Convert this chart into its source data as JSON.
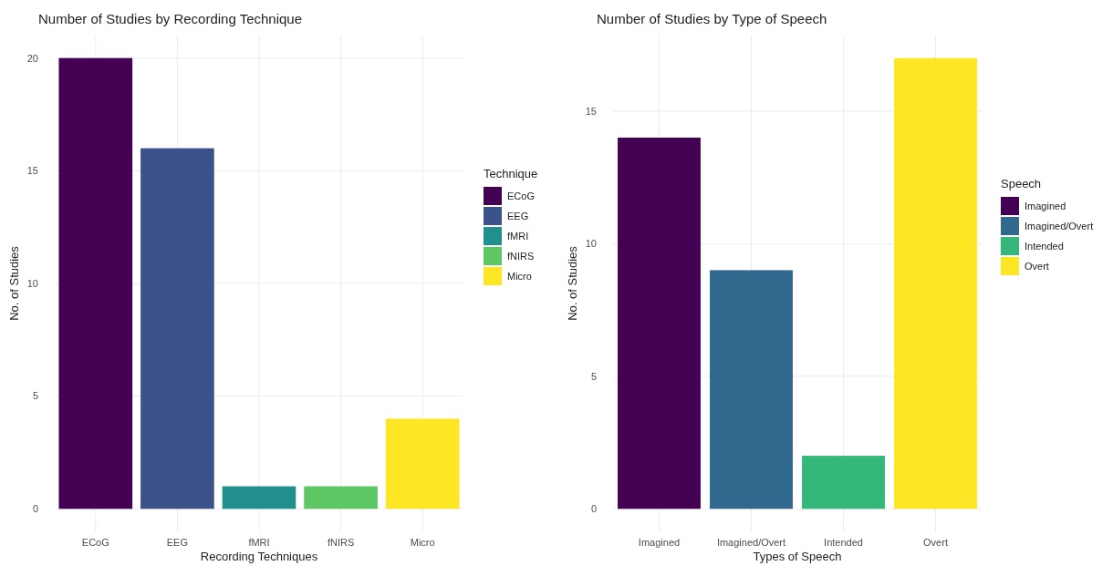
{
  "chart_data": [
    {
      "type": "bar",
      "title": "Number of Studies by Recording Technique",
      "xlabel": "Recording Techniques",
      "ylabel": "No. of Studies",
      "legend_title": "Technique",
      "categories": [
        "ECoG",
        "EEG",
        "fMRI",
        "fNIRS",
        "Micro"
      ],
      "series": [
        {
          "name": "ECoG",
          "color": "#440154",
          "values": [
            20,
            null,
            null,
            null,
            null
          ]
        },
        {
          "name": "EEG",
          "color": "#3b528b",
          "values": [
            null,
            16,
            null,
            null,
            null
          ]
        },
        {
          "name": "fMRI",
          "color": "#21908c",
          "values": [
            null,
            null,
            1,
            null,
            null
          ]
        },
        {
          "name": "fNIRS",
          "color": "#5dc863",
          "values": [
            null,
            null,
            null,
            1,
            null
          ]
        },
        {
          "name": "Micro",
          "color": "#fde725",
          "values": [
            null,
            null,
            null,
            null,
            4
          ]
        }
      ],
      "ylim": [
        -1,
        21
      ],
      "yticks": [
        0,
        5,
        10,
        15,
        20
      ],
      "grid": true,
      "legend": "right"
    },
    {
      "type": "bar",
      "title": "Number of Studies by Type of Speech",
      "xlabel": "Types of Speech",
      "ylabel": "No. of Studies",
      "legend_title": "Speech",
      "categories": [
        "Imagined",
        "Imagined/Overt",
        "Intended",
        "Overt"
      ],
      "series": [
        {
          "name": "Imagined",
          "color": "#440154",
          "values": [
            14,
            null,
            null,
            null
          ]
        },
        {
          "name": "Imagined/Overt",
          "color": "#31688e",
          "values": [
            null,
            9,
            null,
            null
          ]
        },
        {
          "name": "Intended",
          "color": "#35b779",
          "values": [
            null,
            null,
            2,
            null
          ]
        },
        {
          "name": "Overt",
          "color": "#fde725",
          "values": [
            null,
            null,
            null,
            17
          ]
        }
      ],
      "ylim": [
        -0.85,
        17.85
      ],
      "yticks": [
        0,
        5,
        10,
        15
      ],
      "grid": true,
      "legend": "right"
    }
  ]
}
